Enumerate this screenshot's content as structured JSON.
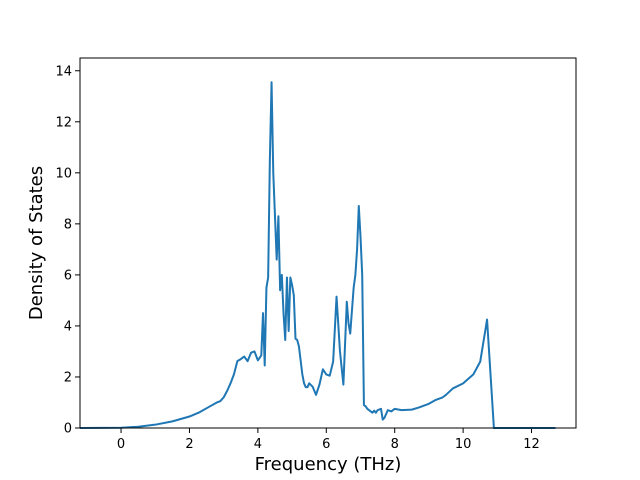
{
  "chart_data": {
    "type": "line",
    "title": "",
    "xlabel": "Frequency (THz)",
    "ylabel": "Density of States",
    "xlim": [
      -1.2,
      13.3
    ],
    "ylim": [
      0,
      14.5
    ],
    "xticks": [
      0,
      2,
      4,
      6,
      8,
      10,
      12
    ],
    "yticks": [
      0,
      2,
      4,
      6,
      8,
      10,
      12,
      14
    ],
    "xtick_labels": [
      "0",
      "2",
      "4",
      "6",
      "8",
      "10",
      "12"
    ],
    "ytick_labels": [
      "0",
      "2",
      "4",
      "6",
      "8",
      "10",
      "12",
      "14"
    ],
    "grid": false,
    "legend": "none",
    "series": [
      {
        "color": "#1f77b4",
        "x": [
          -1.2,
          0.0,
          0.5,
          1.0,
          1.5,
          2.0,
          2.3,
          2.6,
          2.8,
          2.9,
          3.0,
          3.1,
          3.2,
          3.3,
          3.4,
          3.5,
          3.6,
          3.7,
          3.8,
          3.9,
          4.0,
          4.1,
          4.15,
          4.2,
          4.25,
          4.3,
          4.35,
          4.4,
          4.45,
          4.5,
          4.55,
          4.6,
          4.65,
          4.7,
          4.75,
          4.8,
          4.85,
          4.9,
          4.95,
          5.0,
          5.05,
          5.1,
          5.15,
          5.2,
          5.3,
          5.35,
          5.4,
          5.45,
          5.5,
          5.6,
          5.7,
          5.8,
          5.9,
          6.0,
          6.1,
          6.2,
          6.3,
          6.4,
          6.5,
          6.6,
          6.65,
          6.7,
          6.8,
          6.85,
          6.9,
          6.95,
          7.0,
          7.05,
          7.1,
          7.15,
          7.2,
          7.3,
          7.35,
          7.4,
          7.45,
          7.5,
          7.6,
          7.65,
          7.7,
          7.8,
          7.9,
          8.0,
          8.2,
          8.5,
          8.7,
          8.8,
          8.9,
          9.0,
          9.2,
          9.4,
          9.5,
          9.7,
          10.0,
          10.3,
          10.5,
          10.7,
          10.9,
          11.0,
          11.1,
          11.2,
          11.3,
          11.4,
          11.45,
          11.5,
          11.55,
          11.6,
          12.0,
          12.7
        ],
        "y": [
          0.0,
          0.01,
          0.05,
          0.13,
          0.26,
          0.45,
          0.62,
          0.85,
          1.0,
          1.05,
          1.2,
          1.45,
          1.75,
          2.1,
          2.62,
          2.7,
          2.8,
          2.62,
          2.95,
          3.0,
          2.65,
          2.85,
          4.5,
          2.45,
          5.5,
          5.9,
          10.5,
          13.55,
          10.0,
          8.3,
          6.6,
          8.3,
          5.4,
          6.0,
          4.5,
          3.45,
          5.9,
          3.8,
          5.9,
          5.6,
          5.2,
          3.5,
          3.45,
          3.2,
          2.1,
          1.75,
          1.6,
          1.6,
          1.75,
          1.62,
          1.3,
          1.7,
          2.3,
          2.1,
          2.05,
          2.6,
          5.15,
          3.0,
          1.7,
          4.95,
          4.1,
          3.7,
          5.5,
          6.0,
          7.0,
          8.7,
          7.5,
          6.0,
          0.9,
          0.85,
          0.75,
          0.65,
          0.6,
          0.68,
          0.6,
          0.7,
          0.75,
          0.33,
          0.4,
          0.7,
          0.65,
          0.75,
          0.7,
          0.72,
          0.8,
          0.85,
          0.9,
          0.95,
          1.1,
          1.2,
          1.3,
          1.55,
          1.75,
          2.1,
          2.6,
          4.25,
          0.0,
          0.0,
          0.0,
          0.0,
          0.0,
          0.0,
          0.0,
          0.0,
          0.0,
          0.0,
          0.0,
          0.0
        ]
      }
    ]
  }
}
